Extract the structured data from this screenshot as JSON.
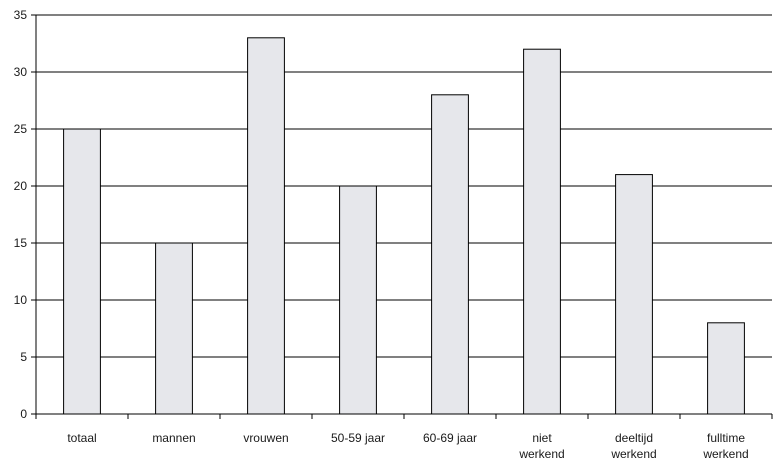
{
  "chart_data": {
    "type": "bar",
    "title": "",
    "xlabel": "",
    "ylabel": "",
    "categories": [
      [
        "totaal"
      ],
      [
        "mannen"
      ],
      [
        "vrouwen"
      ],
      [
        "50-59 jaar"
      ],
      [
        "60-69 jaar"
      ],
      [
        "niet",
        "werkend"
      ],
      [
        "deeltijd",
        "werkend"
      ],
      [
        "fulltime",
        "werkend"
      ]
    ],
    "values": [
      25,
      15,
      33,
      20,
      28,
      32,
      21,
      8
    ],
    "ylim": [
      0,
      35
    ],
    "yticks": [
      0,
      5,
      10,
      15,
      20,
      25,
      30,
      35
    ],
    "grid": true,
    "legend": "none",
    "colors": {
      "bar_fill": "#e6e7eb",
      "bar_stroke": "#000000",
      "axis": "#000000",
      "grid": "#000000"
    }
  }
}
